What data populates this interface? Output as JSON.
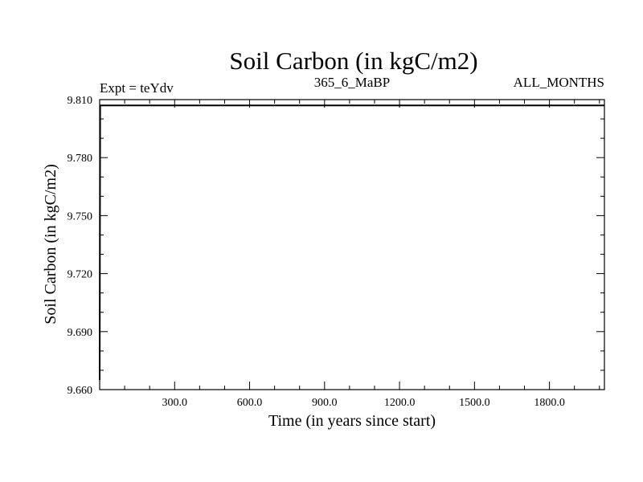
{
  "chart_data": {
    "type": "line",
    "title": "Soil Carbon (in kgC/m2)",
    "subtitle_left": "Expt = teYdv",
    "subtitle_center": "365_6_MaBP",
    "subtitle_right": "ALL_MONTHS",
    "xlabel": "Time (in years since start)",
    "ylabel": "Soil Carbon (in kgC/m2)",
    "xlim": [
      0,
      2020
    ],
    "ylim": [
      9.66,
      9.81
    ],
    "x_ticks": [
      300,
      600,
      900,
      1200,
      1500,
      1800
    ],
    "x_tick_labels": [
      "300.0",
      "600.0",
      "900.0",
      "1200.0",
      "1500.0",
      "1800.0"
    ],
    "y_ticks": [
      9.66,
      9.69,
      9.72,
      9.75,
      9.78,
      9.81
    ],
    "y_tick_labels": [
      "9.660",
      "9.690",
      "9.720",
      "9.750",
      "9.780",
      "9.810"
    ],
    "series": [
      {
        "x": [
          0,
          2,
          4,
          2020
        ],
        "values": [
          9.665,
          9.807,
          9.807,
          9.807
        ]
      }
    ],
    "grid": false,
    "colors": {
      "line": "#000000",
      "background": "#ffffff"
    }
  }
}
